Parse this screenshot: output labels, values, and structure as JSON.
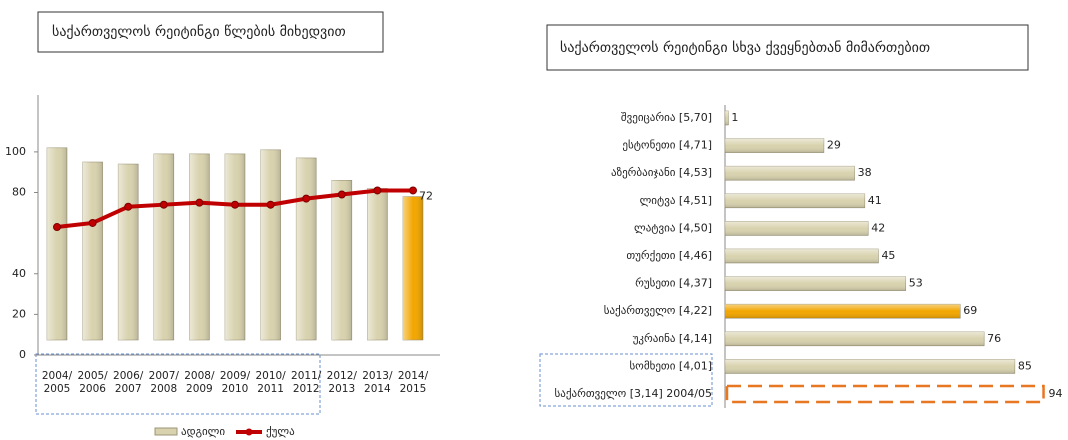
{
  "chart_data": [
    {
      "type": "bar_line",
      "title": "საქართველოს რეიტინგი წლების მიხედვით",
      "categories": [
        "2004/ 2005",
        "2005/ 2006",
        "2006/ 2007",
        "2007/ 2008",
        "2008/ 2009",
        "2009/ 2010",
        "2010/ 2011",
        "2011/ 2012",
        "2012/ 2013",
        "2013/ 2014",
        "2014/ 2015"
      ],
      "series": [
        {
          "name": "ადგილი",
          "color": "#d8d2ae",
          "highlight_color": "#f2a600",
          "values": [
            102,
            95,
            94,
            99,
            99,
            99,
            101,
            97,
            86,
            82,
            78
          ]
        },
        {
          "name": "ქულა",
          "color": "#c00000",
          "values": [
            63,
            65,
            73,
            74,
            75,
            74,
            74,
            77,
            79,
            81,
            81
          ]
        }
      ],
      "annotations": [
        "72"
      ],
      "ylim": [
        0,
        128
      ],
      "yticks": [
        0,
        20,
        40,
        80,
        100
      ],
      "legend": "bottom"
    },
    {
      "type": "hbar",
      "title": "საქართველოს რეიტინგი სხვა ქვეყნებთან მიმართებით",
      "categories": [
        "შვეიცარია [5,70]",
        "ესტონეთი [4,71]",
        "აზერბაიჯანი [4,53]",
        "ლიტვა [4,51]",
        "ლატვია [4,50]",
        "თურქეთი [4,46]",
        "რუსეთი [4,37]",
        "საქართველო [4,22]",
        "უკრაინა [4,14]",
        "სომხეთი [4,01]",
        "საქართველო [3,14] 2004/05"
      ],
      "values": [
        1,
        29,
        38,
        41,
        42,
        45,
        53,
        69,
        76,
        85,
        94
      ],
      "colors": [
        "#d8d2ae",
        "#d8d2ae",
        "#d8d2ae",
        "#d8d2ae",
        "#d8d2ae",
        "#d8d2ae",
        "#d8d2ae",
        "#f2a600",
        "#d8d2ae",
        "#d8d2ae",
        "#e87722"
      ],
      "bar_styles": [
        "solid",
        "solid",
        "solid",
        "solid",
        "solid",
        "solid",
        "solid",
        "solid",
        "solid",
        "solid",
        "dashed"
      ]
    }
  ]
}
